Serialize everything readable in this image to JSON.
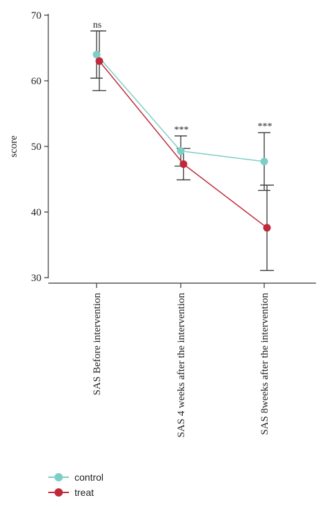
{
  "chart_data": {
    "type": "line",
    "ylabel": "score",
    "xlabel": "",
    "ylim": [
      30,
      70
    ],
    "yticks": [
      30,
      40,
      50,
      60,
      70
    ],
    "categories": [
      "SAS Before intervention",
      "SAS 4 weeks after the intervention",
      "SAS 8weeks after the intervention"
    ],
    "series": [
      {
        "name": "control",
        "color": "#7ecec6",
        "values": [
          64.0,
          49.3,
          47.7
        ],
        "err_low": [
          60.4,
          47.0,
          43.3
        ],
        "err_high": [
          67.6,
          51.6,
          52.1
        ]
      },
      {
        "name": "treat",
        "color": "#c0293b",
        "values": [
          63.0,
          47.3,
          37.6
        ],
        "err_low": [
          58.5,
          44.9,
          31.1
        ],
        "err_high": [
          67.6,
          49.7,
          44.1
        ]
      }
    ],
    "annotations": [
      "ns",
      "***",
      "***"
    ],
    "legend_position": "bottom-left",
    "grid": false
  }
}
